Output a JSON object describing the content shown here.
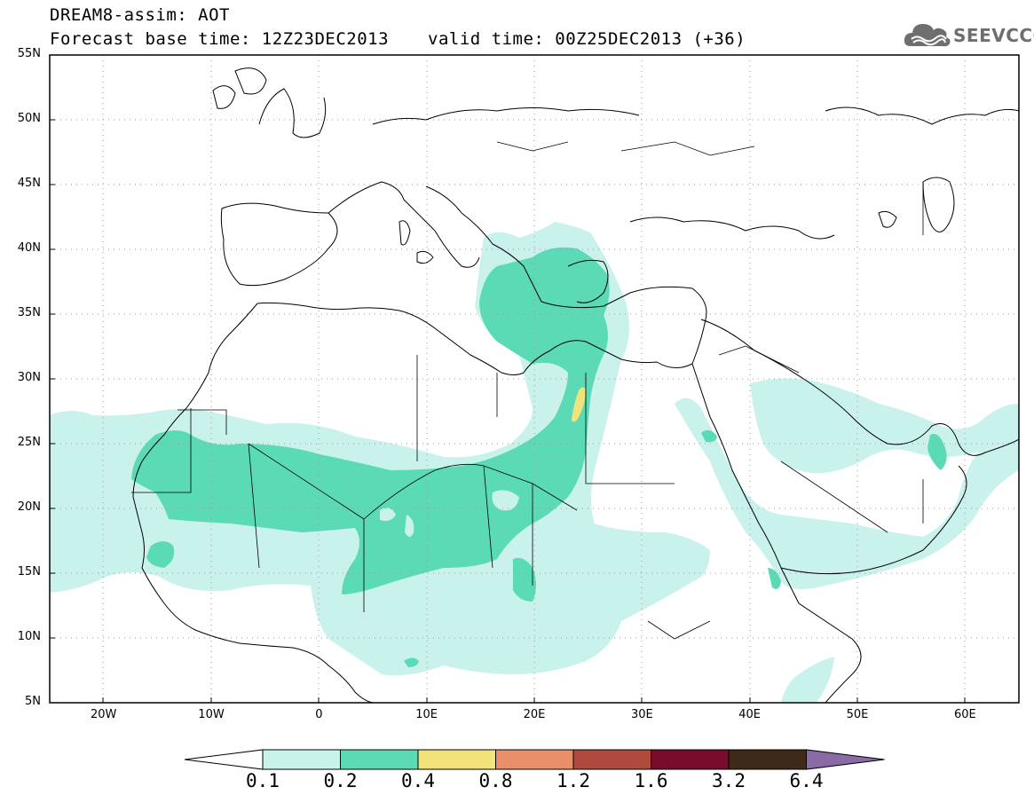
{
  "header": {
    "line1": "DREAM8-assim: AOT",
    "base_time": "Forecast base time: 12Z23DEC2013",
    "valid_time": "valid time: 00Z25DEC2013 (+36)"
  },
  "logo": {
    "text": "SEEVCCC",
    "icon": "cloud-icon",
    "color": "#6d6e6f"
  },
  "map": {
    "lat_labels": [
      "55N",
      "50N",
      "45N",
      "40N",
      "35N",
      "30N",
      "25N",
      "20N",
      "15N",
      "10N",
      "5N"
    ],
    "lon_labels": [
      "20W",
      "10W",
      "0",
      "10E",
      "20E",
      "30E",
      "40E",
      "50E",
      "60E"
    ],
    "lat_values": [
      55,
      50,
      45,
      40,
      35,
      30,
      25,
      20,
      15,
      10,
      5
    ],
    "lon_values": [
      -20,
      -10,
      0,
      10,
      20,
      30,
      40,
      50,
      60
    ],
    "extent": {
      "lon_min": -25,
      "lon_max": 65,
      "lat_min": 5,
      "lat_max": 55
    },
    "grid": "dotted"
  },
  "colorbar": {
    "labels": [
      "0.1",
      "0.2",
      "0.4",
      "0.8",
      "1.2",
      "1.6",
      "3.2",
      "6.4"
    ],
    "colors": [
      "#ffffff",
      "#c9f2ec",
      "#5adbb5",
      "#f2e27a",
      "#e88e68",
      "#b04a3c",
      "#7a0c2b",
      "#3f2a1a",
      "#8b6aa8"
    ]
  }
}
